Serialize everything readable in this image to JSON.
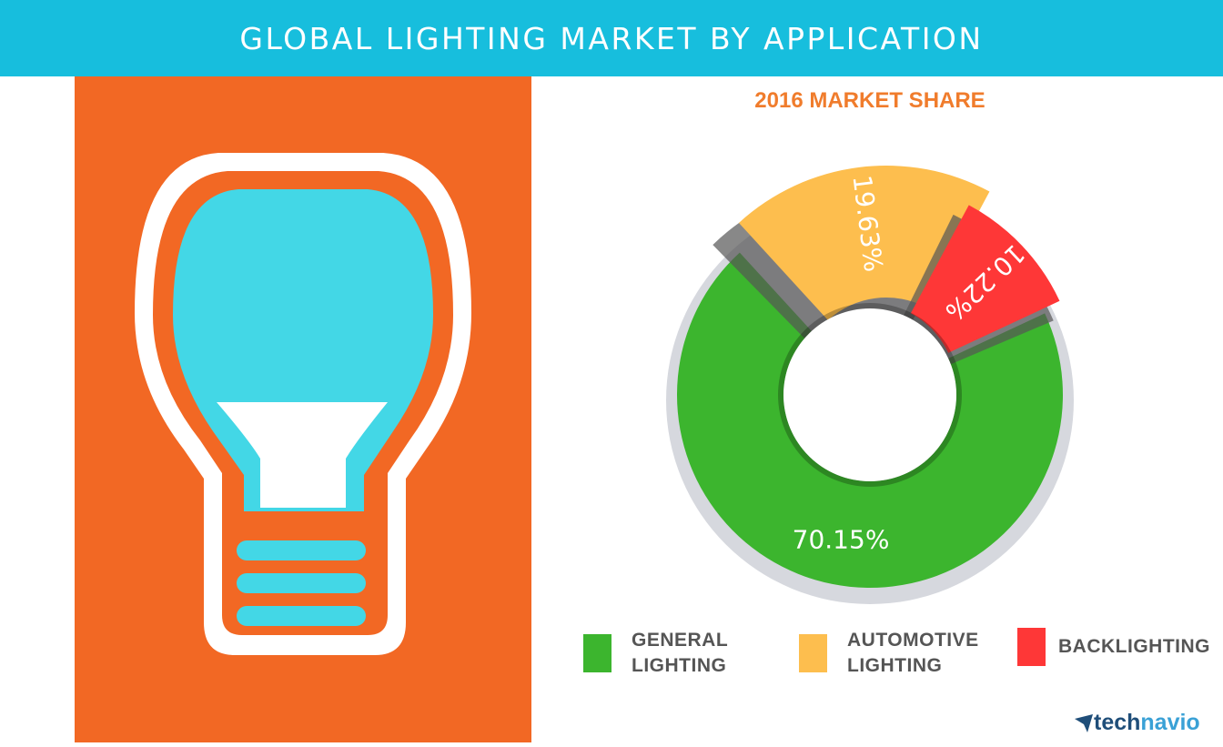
{
  "header": {
    "title": "GLOBAL LIGHTING MARKET BY APPLICATION"
  },
  "illustration": {
    "icon": "light-bulb-icon",
    "background": "#f26824",
    "glass": "#43d7e6"
  },
  "chart_data": {
    "type": "pie",
    "title": "2016 MARKET SHARE",
    "series": [
      {
        "name": "GENERAL LIGHTING",
        "value": 70.15,
        "label": "70.15%",
        "color": "#3cb52e"
      },
      {
        "name": "AUTOMOTIVE LIGHTING",
        "value": 19.63,
        "label": "19.63%",
        "color": "#fdbe4e"
      },
      {
        "name": "BACKLIGHTING",
        "value": 10.22,
        "label": "10.22%",
        "color": "#fe3737"
      }
    ],
    "legend_position": "bottom",
    "donut": true
  },
  "legend": {
    "items": [
      {
        "line1": "GENERAL",
        "line2": "LIGHTING",
        "color": "#3cb52e"
      },
      {
        "line1": "AUTOMOTIVE",
        "line2": "LIGHTING",
        "color": "#fdbe4e"
      },
      {
        "line1": "BACKLIGHTING",
        "line2": "",
        "color": "#fe3737"
      }
    ]
  },
  "brand": {
    "part1": "tech",
    "part2": "navio",
    "icon": "technavio-logo-icon"
  }
}
